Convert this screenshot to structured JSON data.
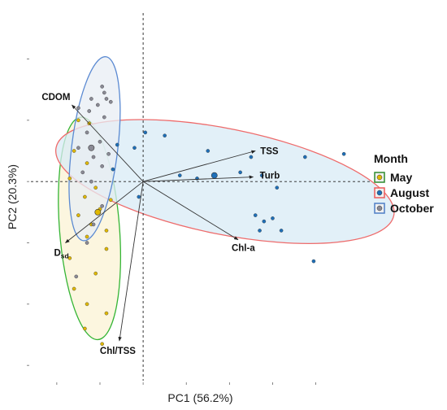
{
  "chart_data": {
    "type": "scatter",
    "subtype": "PCA biplot",
    "xlabel": "PC1 (56.2%)",
    "ylabel": "PC2 (20.3%)",
    "xlim": [
      -5.2,
      10.5
    ],
    "ylim": [
      -6.5,
      5.5
    ],
    "grid": false,
    "reference_lines": "dashed at x=0 and y=0",
    "legend": {
      "title": "Month",
      "placement": "right",
      "entries": [
        {
          "label": "May",
          "fill": "#e0b800",
          "stroke": "#2e8b2e"
        },
        {
          "label": "August",
          "fill": "#1e6fb8",
          "stroke": "#ee5a5a"
        },
        {
          "label": "October",
          "fill": "#8a8a95",
          "stroke": "#4d7dc6"
        }
      ]
    },
    "series": [
      {
        "name": "May",
        "color": "#e0b800",
        "ellipse_fill": "#fbf3d4",
        "ellipse_stroke": "#35b535",
        "centroid": [
          -2.1,
          -1.0
        ],
        "points": [
          [
            -3.0,
            2.0
          ],
          [
            -2.5,
            1.9
          ],
          [
            -3.2,
            1.0
          ],
          [
            -2.6,
            0.6
          ],
          [
            -3.4,
            0.1
          ],
          [
            -2.2,
            -0.2
          ],
          [
            -2.7,
            -0.5
          ],
          [
            -3.0,
            -1.1
          ],
          [
            -2.4,
            -1.4
          ],
          [
            -1.7,
            -1.6
          ],
          [
            -2.6,
            -1.8
          ],
          [
            -1.7,
            -2.2
          ],
          [
            -3.4,
            -2.5
          ],
          [
            -2.2,
            -3.0
          ],
          [
            -3.2,
            -3.5
          ],
          [
            -2.6,
            -4.0
          ],
          [
            -1.7,
            -4.3
          ],
          [
            -2.7,
            -4.8
          ],
          [
            -1.9,
            -5.3
          ],
          [
            -1.5,
            -0.6
          ],
          [
            -2.0,
            -0.9
          ]
        ]
      },
      {
        "name": "August",
        "color": "#1e6fb8",
        "ellipse_fill": "#d8ebf6",
        "ellipse_stroke": "#ee6b6b",
        "centroid": [
          3.3,
          0.2
        ],
        "points": [
          [
            0.1,
            1.6
          ],
          [
            1.0,
            1.5
          ],
          [
            -1.2,
            1.2
          ],
          [
            -0.4,
            1.1
          ],
          [
            3.0,
            1.0
          ],
          [
            5.0,
            0.8
          ],
          [
            7.5,
            0.8
          ],
          [
            9.3,
            0.9
          ],
          [
            1.7,
            0.2
          ],
          [
            2.5,
            0.1
          ],
          [
            4.5,
            0.3
          ],
          [
            5.5,
            0.2
          ],
          [
            6.2,
            -0.2
          ],
          [
            -1.4,
            0.4
          ],
          [
            -0.2,
            -0.5
          ],
          [
            5.2,
            -1.1
          ],
          [
            6.0,
            -1.2
          ],
          [
            5.6,
            -1.3
          ],
          [
            5.4,
            -1.6
          ],
          [
            6.4,
            -1.6
          ],
          [
            7.9,
            -2.6
          ]
        ]
      },
      {
        "name": "October",
        "color": "#8a8a95",
        "ellipse_fill": "#e8eef4",
        "ellipse_stroke": "#5b8ad2",
        "centroid": [
          -2.4,
          1.1
        ],
        "points": [
          [
            -1.9,
            3.1
          ],
          [
            -1.8,
            2.9
          ],
          [
            -2.4,
            2.7
          ],
          [
            -1.7,
            2.7
          ],
          [
            -1.5,
            2.6
          ],
          [
            -2.1,
            2.5
          ],
          [
            -3.0,
            2.4
          ],
          [
            -2.5,
            2.3
          ],
          [
            -1.8,
            2.1
          ],
          [
            -2.6,
            1.6
          ],
          [
            -2.0,
            1.3
          ],
          [
            -3.0,
            1.1
          ],
          [
            -1.6,
            0.9
          ],
          [
            -2.3,
            0.8
          ],
          [
            -1.9,
            0.5
          ],
          [
            -2.8,
            0.3
          ],
          [
            -2.4,
            0.0
          ],
          [
            -1.9,
            -0.8
          ],
          [
            -2.3,
            -1.4
          ],
          [
            -2.6,
            -2.0
          ],
          [
            -3.1,
            -3.1
          ]
        ]
      }
    ],
    "loadings": [
      {
        "label": "CDOM",
        "x": -3.3,
        "y": 2.5
      },
      {
        "label": "TSS",
        "x": 5.2,
        "y": 1.0
      },
      {
        "label": "Turb",
        "x": 5.1,
        "y": 0.15
      },
      {
        "label": "Chl-a",
        "x": 4.4,
        "y": -1.9
      },
      {
        "label": "D",
        "sub": "sd",
        "x": -3.6,
        "y": -2.0
      },
      {
        "label": "Chl/TSS",
        "x": -1.1,
        "y": -5.2
      }
    ]
  }
}
